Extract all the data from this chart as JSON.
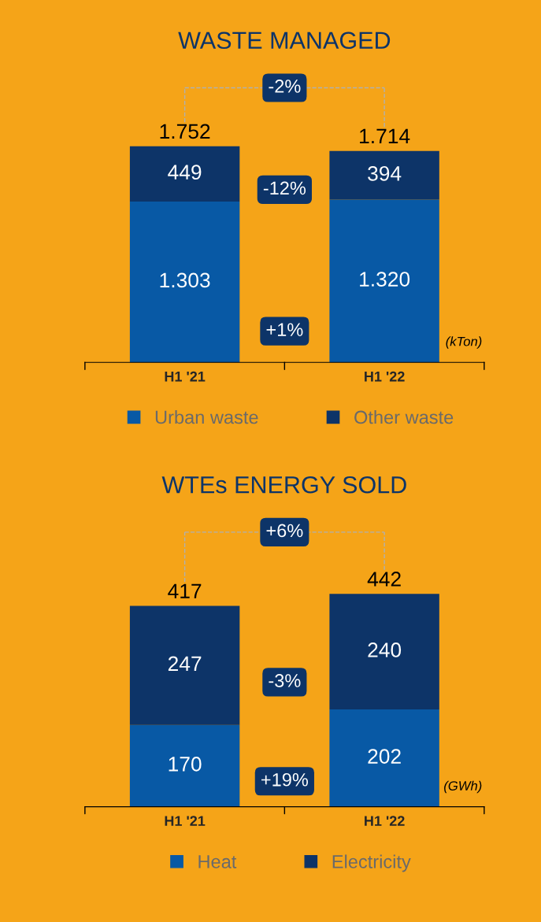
{
  "chart_data": [
    {
      "type": "bar",
      "title": "WASTE MANAGED",
      "categories": [
        "H1 '21",
        "H1 '22"
      ],
      "stacked": true,
      "data_labels": true,
      "legend": "bottom",
      "grid": false,
      "series": [
        {
          "name": "Urban waste",
          "color": "#0859a5",
          "values": [
            1303,
            1320
          ],
          "value_labels": [
            "1.303",
            "1.320"
          ]
        },
        {
          "name": "Other waste",
          "color": "#0d3468",
          "values": [
            449,
            394
          ],
          "value_labels": [
            "449",
            "394"
          ]
        }
      ],
      "totals": [
        "1.752",
        "1.714"
      ],
      "annotations": [
        "-2%",
        "-12%",
        "+1%",
        "(kTon)"
      ]
    },
    {
      "type": "bar",
      "title": "WTEs ENERGY SOLD",
      "categories": [
        "H1 '21",
        "H1 '22"
      ],
      "stacked": true,
      "data_labels": true,
      "legend": "bottom",
      "grid": false,
      "series": [
        {
          "name": "Heat",
          "color": "#0859a5",
          "values": [
            170,
            202
          ],
          "value_labels": [
            "170",
            "202"
          ]
        },
        {
          "name": "Electricity",
          "color": "#0d3468",
          "values": [
            247,
            240
          ],
          "value_labels": [
            "247",
            "240"
          ]
        }
      ],
      "totals": [
        "417",
        "442"
      ],
      "annotations": [
        "+6%",
        "-3%",
        "+19%",
        "(GWh)"
      ]
    }
  ]
}
